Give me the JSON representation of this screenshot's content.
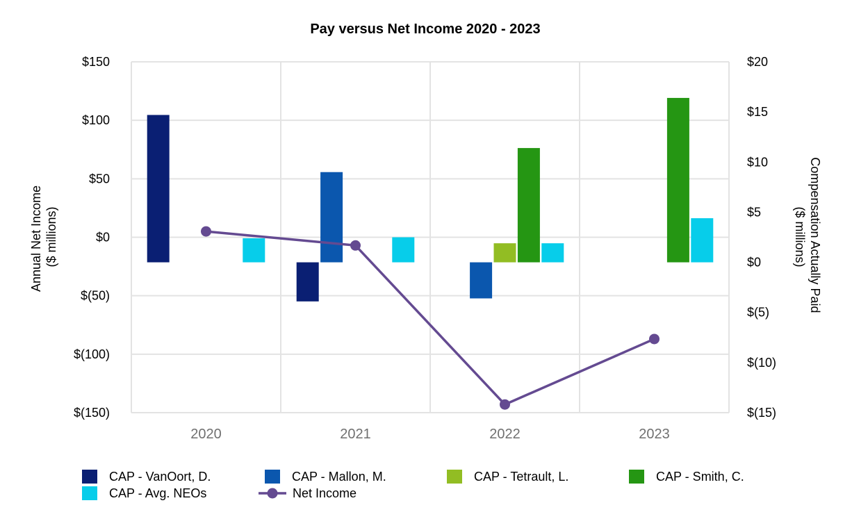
{
  "chart_data": {
    "type": "bar",
    "title": "Pay versus Net Income 2020 - 2023",
    "categories": [
      "2020",
      "2021",
      "2022",
      "2023"
    ],
    "left_axis": {
      "label_line1": "Annual Net Income",
      "label_line2": "($ millions)",
      "ylim": [
        -150,
        150
      ],
      "ticks": [
        150,
        100,
        50,
        0,
        -50,
        -100,
        -150
      ],
      "tick_labels": [
        "$150",
        "$100",
        "$50",
        "$0",
        "$(50)",
        "$(100)",
        "$(150)"
      ]
    },
    "right_axis": {
      "label_line1": "Compensation Actually Paid",
      "label_line2": "($ millions)",
      "ylim": [
        -15,
        20
      ],
      "ticks": [
        20,
        15,
        10,
        5,
        0,
        -5,
        -10,
        -15
      ],
      "tick_labels": [
        "$20",
        "$15",
        "$10",
        "$5",
        "$0",
        "$(5)",
        "$(10)",
        "$(15)"
      ]
    },
    "bar_series": [
      {
        "name": "CAP - VanOort, D.",
        "color": "#0a1f73",
        "values": [
          14.7,
          -3.9,
          null,
          null
        ]
      },
      {
        "name": "CAP - Mallon, M.",
        "color": "#0b57ae",
        "values": [
          null,
          9.0,
          -3.6,
          null
        ]
      },
      {
        "name": "CAP - Tetrault, L.",
        "color": "#92bd23",
        "values": [
          null,
          null,
          1.9,
          null
        ]
      },
      {
        "name": "CAP - Smith, C.",
        "color": "#259613",
        "values": [
          null,
          null,
          11.4,
          16.4
        ]
      },
      {
        "name": "CAP - Avg. NEOs",
        "color": "#07cdea",
        "values": [
          2.4,
          2.5,
          1.9,
          4.4
        ]
      }
    ],
    "line_series": {
      "name": "Net Income",
      "color": "#644a91",
      "axis": "left",
      "values": [
        5,
        -7,
        -143,
        -87
      ]
    },
    "legend_position": "bottom"
  }
}
